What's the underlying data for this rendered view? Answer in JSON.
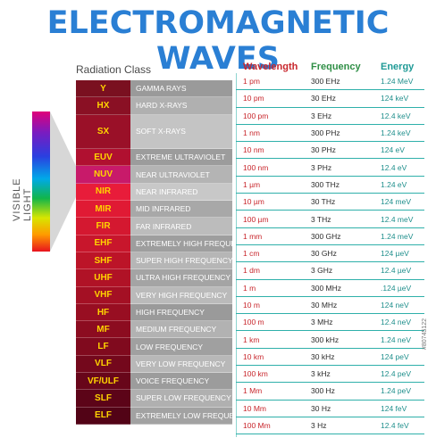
{
  "title": "ELECTROMAGNETIC WAVES",
  "headers": {
    "class": "Radiation Class",
    "wavelength": "Wavelength",
    "frequency": "Frequency",
    "energy": "Energy"
  },
  "side_label": "VISIBLE LIGHT",
  "watermark": "#80745122",
  "colors": {
    "title": "#2a7fd4",
    "wavelength": "#c8262c",
    "frequency": "#2f8f46",
    "energy": "#1f9a96",
    "grid": "#2fb0aa"
  },
  "rows": [
    {
      "code": "Y",
      "name": "GAMMA RAYS",
      "wl": "1 pm",
      "fr": "300 EHz",
      "en": "1.24 MeV",
      "bg": "#7a1020",
      "nbg": "#9a9a9a"
    },
    {
      "code": "HX",
      "name": "HARD X-RAYS",
      "wl": "10 pm",
      "fr": "30 EHz",
      "en": "124 keV",
      "bg": "#8a1024",
      "nbg": "#b0b0b0"
    },
    {
      "code": "SX",
      "name": "SOFT X-RAYS",
      "wl": "100 pm",
      "fr": "3 EHz",
      "en": "12.4 keV",
      "bg": "#9a1028",
      "nbg": "#c4c4c4",
      "tall": true
    },
    {
      "code": "",
      "name": "",
      "wl": "1 nm",
      "fr": "300 PHz",
      "en": "1.24 keV",
      "bg": "",
      "nbg": ""
    },
    {
      "code": "EUV",
      "name": "EXTREME ULTRAVIOLET",
      "wl": "10 nm",
      "fr": "30 PHz",
      "en": "124 eV",
      "bg": "#b01030",
      "nbg": "#9c9c9c"
    },
    {
      "code": "NUV",
      "name": "NEAR ULTRAVIOLET",
      "wl": "100 nm",
      "fr": "3 PHz",
      "en": "12.4 eV",
      "bg": "#c81a6a",
      "nbg": "#b4b4b4"
    },
    {
      "code": "NIR",
      "name": "NEAR INFRARED",
      "wl": "1 µm",
      "fr": "300 THz",
      "en": "1.24 eV",
      "bg": "#e81c3a",
      "nbg": "#c8c8c8"
    },
    {
      "code": "MIR",
      "name": "MID INFRARED",
      "wl": "10 µm",
      "fr": "30 THz",
      "en": "124 meV",
      "bg": "#e01a34",
      "nbg": "#a8a8a8"
    },
    {
      "code": "FIR",
      "name": "FAR INFRARED",
      "wl": "100 µm",
      "fr": "3 THz",
      "en": "12.4 meV",
      "bg": "#d41830",
      "nbg": "#bcbcbc"
    },
    {
      "code": "EHF",
      "name": "EXTREMELY HIGH FREQUENCY",
      "wl": "1 mm",
      "fr": "300 GHz",
      "en": "1.24 meV",
      "bg": "#c8162c",
      "nbg": "#9e9e9e"
    },
    {
      "code": "SHF",
      "name": "SUPER HIGH FREQUENCY",
      "wl": "1 cm",
      "fr": "30 GHz",
      "en": "124 µeV",
      "bg": "#bc1428",
      "nbg": "#b6b6b6"
    },
    {
      "code": "UHF",
      "name": "ULTRA HIGH FREQUENCY",
      "wl": "1 dm",
      "fr": "3 GHz",
      "en": "12.4 µeV",
      "bg": "#b01226",
      "nbg": "#a4a4a4"
    },
    {
      "code": "VHF",
      "name": "VERY HIGH FREQUENCY",
      "wl": "1 m",
      "fr": "300 MHz",
      "en": ".124 µeV",
      "bg": "#a41024",
      "nbg": "#bababa"
    },
    {
      "code": "HF",
      "name": "HIGH FREQUENCY",
      "wl": "10 m",
      "fr": "30 MHz",
      "en": "124 neV",
      "bg": "#980e22",
      "nbg": "#9a9a9a"
    },
    {
      "code": "MF",
      "name": "MEDIUM FREQUENCY",
      "wl": "100 m",
      "fr": "3 MHz",
      "en": "12.4 neV",
      "bg": "#8c0c20",
      "nbg": "#b2b2b2"
    },
    {
      "code": "LF",
      "name": "LOW FREQUENCY",
      "wl": "1 km",
      "fr": "300 kHz",
      "en": "1.24 neV",
      "bg": "#800a1e",
      "nbg": "#a0a0a0"
    },
    {
      "code": "VLF",
      "name": "VERY LOW FREQUENCY",
      "wl": "10 km",
      "fr": "30 kHz",
      "en": "124 peV",
      "bg": "#74081c",
      "nbg": "#b8b8b8"
    },
    {
      "code": "VF/ULF",
      "name": "VOICE FREQUENCY",
      "wl": "100 km",
      "fr": "3 kHz",
      "en": "12.4 peV",
      "bg": "#68061a",
      "nbg": "#9c9c9c"
    },
    {
      "code": "SLF",
      "name": "SUPER LOW FREQUENCY",
      "wl": "1 Mm",
      "fr": "300 Hz",
      "en": "1.24 peV",
      "bg": "#5c0418",
      "nbg": "#b0b0b0"
    },
    {
      "code": "ELF",
      "name": "EXTREMELY LOW FREQUENCY",
      "wl": "10 Mm",
      "fr": "30 Hz",
      "en": "124 feV",
      "bg": "#520316",
      "nbg": "#a2a2a2"
    },
    {
      "code": "",
      "name": "",
      "wl": "100 Mm",
      "fr": "3 Hz",
      "en": "12.4 feV",
      "bg": "",
      "nbg": ""
    }
  ]
}
